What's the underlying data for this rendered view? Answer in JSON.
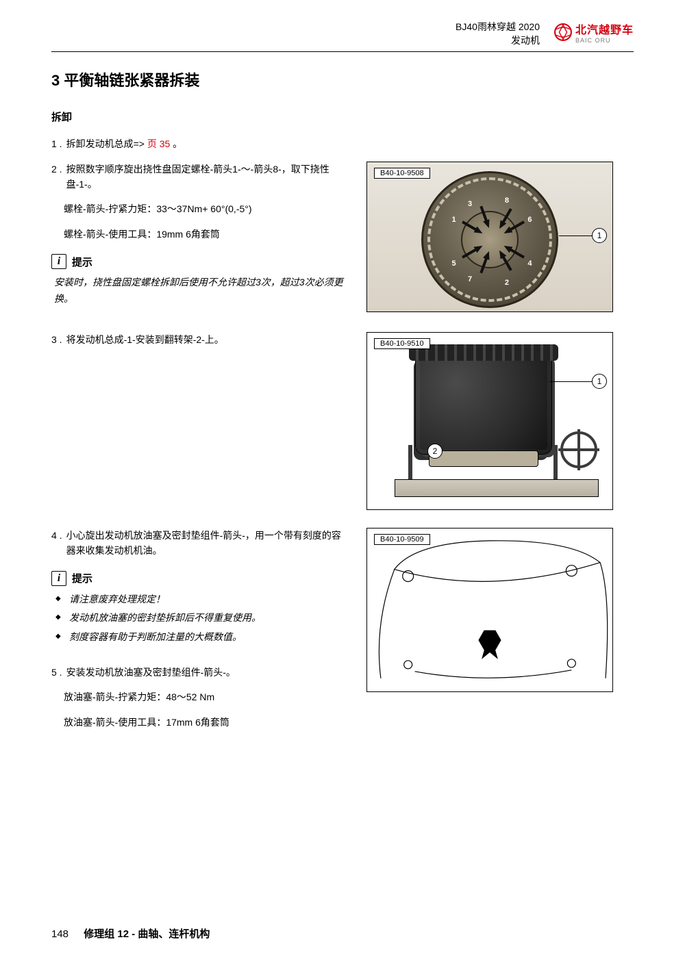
{
  "header": {
    "model_line": "BJ40雨林穿越 2020",
    "sub_line": "发动机",
    "brand_cn": "北汽越野车",
    "brand_en": "BAIC ORU",
    "logo_color": "#d4000f"
  },
  "section": {
    "number": "3",
    "title": "平衡轴链张紧器拆装"
  },
  "disassembly_heading": "拆卸",
  "steps": {
    "s1": {
      "num": "1 .",
      "text": "拆卸发动机总成=> ",
      "link": "页 35",
      "tail": " 。"
    },
    "s2": {
      "num": "2 .",
      "text": "按照数字顺序旋出挠性盘固定螺栓-箭头1-～-箭头8-，取下挠性盘-1-。",
      "torque": "螺栓-箭头-拧紧力矩：33～37Nm+ 60°(0,-5°)",
      "tool": "螺栓-箭头-使用工具：19mm 6角套筒"
    },
    "s3": {
      "num": "3 .",
      "text": "将发动机总成-1-安装到翻转架-2-上。"
    },
    "s4": {
      "num": "4 .",
      "text": "小心旋出发动机放油塞及密封垫组件-箭头-，用一个带有刻度的容器来收集发动机机油。"
    },
    "s5": {
      "num": "5 .",
      "text": "安装发动机放油塞及密封垫组件-箭头-。",
      "torque": "放油塞-箭头-拧紧力矩：48～52 Nm",
      "tool": "放油塞-箭头-使用工具：17mm 6角套筒"
    }
  },
  "tips": {
    "label": "提示",
    "tip1": "安装时，挠性盘固定螺栓拆卸后使用不允许超过3次，超过3次必须更换。",
    "tip2_items": {
      "a": "请注意废弃处理规定！",
      "b": "发动机放油塞的密封垫拆卸后不得重复使用。",
      "c": "刻度容器有助于判断加注量的大概数值。"
    }
  },
  "figures": {
    "f1": {
      "code": "B40-10-9508",
      "callout1": "1",
      "bolt_arrows": [
        {
          "n": "1",
          "angle": -60
        },
        {
          "n": "2",
          "angle": 160
        },
        {
          "n": "3",
          "angle": -30
        },
        {
          "n": "4",
          "angle": 120
        },
        {
          "n": "5",
          "angle": -120
        },
        {
          "n": "6",
          "angle": 60
        },
        {
          "n": "7",
          "angle": -150
        },
        {
          "n": "8",
          "angle": 20
        }
      ],
      "colors": {
        "metal_dark": "#3d3729",
        "metal_light": "#8b8270"
      }
    },
    "f2": {
      "code": "B40-10-9510",
      "callout1": "1",
      "callout2": "2"
    },
    "f3": {
      "code": "B40-10-9509"
    }
  },
  "footer": {
    "page": "148",
    "title": "修理组 12 - 曲轴、连杆机构"
  }
}
